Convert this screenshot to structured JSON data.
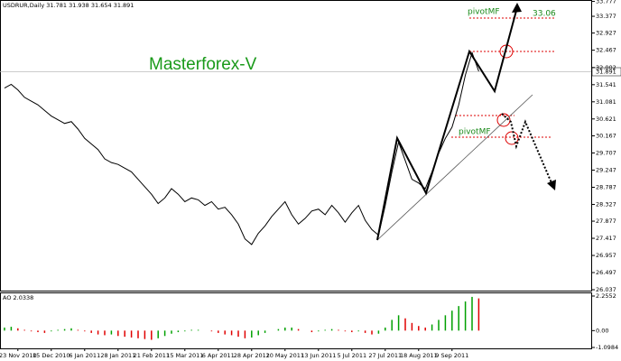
{
  "chart_data": [
    {
      "type": "line",
      "title": "USDRUR,Daily  31.781 31.938 31.654 31.891",
      "annotations": {
        "watermark": "Masterforex-V",
        "pivot_upper": "pivotMF",
        "pivot_lower": "pivotMF",
        "target": "33.06",
        "last_price": "31.891"
      },
      "categories": [
        null,
        null,
        "23 Nov 2010",
        null,
        null,
        null,
        null,
        "15 Dec 2010",
        null,
        null,
        null,
        null,
        "6 Jan 2011",
        null,
        null,
        null,
        null,
        "28 Jan 2011",
        null,
        null,
        null,
        null,
        "21 Feb 2011",
        null,
        null,
        null,
        null,
        "15 Mar 2011",
        null,
        null,
        null,
        null,
        "6 Apr 2011",
        null,
        null,
        null,
        null,
        "28 Apr 2011",
        null,
        null,
        null,
        null,
        "20 May 2011",
        null,
        null,
        null,
        null,
        "13 Jun 2011",
        null,
        null,
        null,
        null,
        "5 Jul 2011",
        null,
        null,
        null,
        null,
        "27 Jul 2011",
        null,
        null,
        null,
        null,
        "18 Aug 2011",
        null,
        null,
        null,
        null,
        "9 Sep 2011",
        null,
        null,
        null,
        null
      ],
      "values": [
        31.45,
        31.55,
        31.4,
        31.2,
        31.1,
        31.0,
        30.85,
        30.7,
        30.6,
        30.5,
        30.55,
        30.35,
        30.1,
        29.95,
        29.8,
        29.55,
        29.45,
        29.4,
        29.3,
        29.2,
        29.0,
        28.8,
        28.6,
        28.35,
        28.5,
        28.75,
        28.6,
        28.4,
        28.5,
        28.45,
        28.3,
        28.4,
        28.2,
        28.25,
        28.05,
        27.8,
        27.4,
        27.25,
        27.55,
        27.75,
        28.0,
        28.2,
        28.4,
        28.05,
        27.8,
        27.95,
        28.15,
        28.2,
        28.05,
        28.3,
        28.1,
        27.85,
        28.1,
        28.3,
        27.9,
        27.65,
        27.5,
        28.3,
        29.2,
        30.0,
        29.5,
        29.0,
        28.9,
        28.75,
        29.2,
        29.7,
        30.1,
        30.4,
        31.0,
        31.8,
        32.4,
        31.9
      ],
      "color": "#000000",
      "ylim": [
        26.037,
        33.79
      ],
      "yticks": [
        33.777,
        33.377,
        32.927,
        32.467,
        32.002,
        31.541,
        31.081,
        30.621,
        30.167,
        29.707,
        29.247,
        28.787,
        28.327,
        27.877,
        27.417,
        26.957,
        26.497,
        26.037
      ]
    },
    {
      "type": "bar",
      "title": "AO 2.0338",
      "values": [
        0.2,
        0.25,
        0.15,
        0.05,
        -0.05,
        -0.1,
        -0.15,
        -0.05,
        0.05,
        0.1,
        0.15,
        0.05,
        -0.05,
        -0.15,
        -0.25,
        -0.3,
        -0.25,
        -0.35,
        -0.4,
        -0.45,
        -0.5,
        -0.55,
        -0.6,
        -0.5,
        -0.35,
        -0.2,
        -0.1,
        -0.05,
        0.05,
        0.05,
        0.0,
        -0.05,
        -0.15,
        -0.25,
        -0.3,
        -0.4,
        -0.5,
        -0.45,
        -0.3,
        -0.15,
        0.0,
        0.1,
        0.2,
        0.2,
        0.1,
        0.0,
        -0.1,
        -0.05,
        0.05,
        0.1,
        0.05,
        -0.05,
        -0.1,
        -0.05,
        -0.15,
        -0.25,
        -0.2,
        0.2,
        0.7,
        1.0,
        0.8,
        0.5,
        0.3,
        0.2,
        0.4,
        0.7,
        1.0,
        1.3,
        1.6,
        1.9,
        2.2,
        2.1
      ],
      "up_color": "#00a000",
      "down_color": "#e00000",
      "ylim": [
        -1.0984,
        2.2552
      ],
      "yticks": [
        2.2552,
        {
          "value": 0,
          "label": "0.00"
        },
        -1.0984
      ]
    }
  ]
}
